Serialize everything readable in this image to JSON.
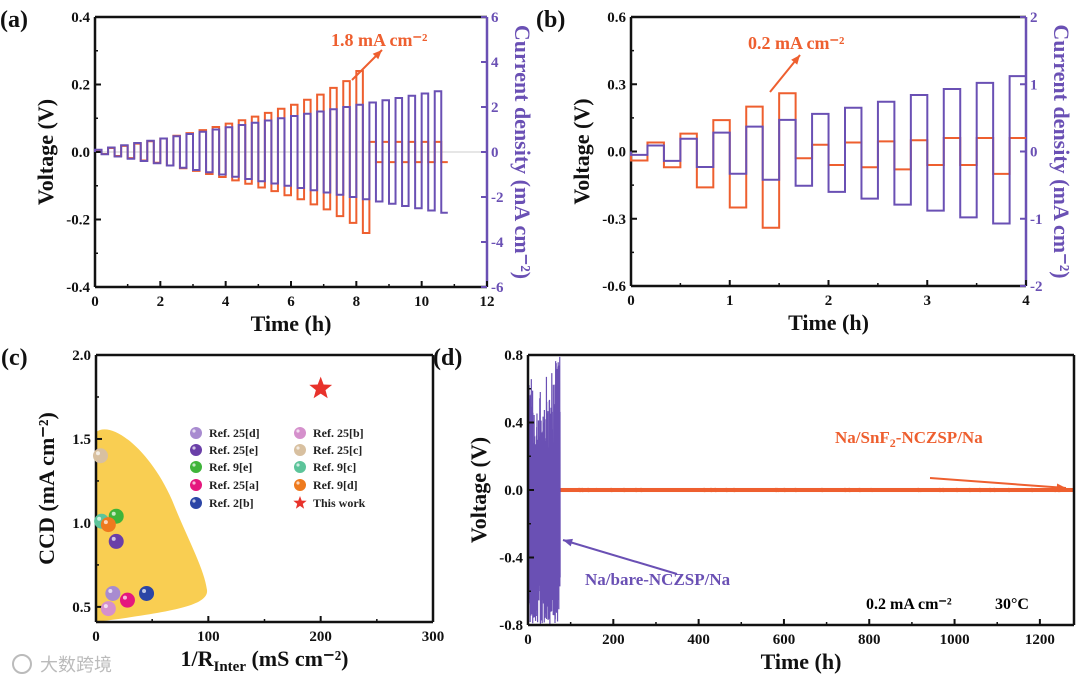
{
  "watermark": "大数跨境",
  "colors": {
    "orange": "#EE5F2F",
    "purple": "#6A50B4",
    "region": "#F9CE52",
    "star": "#E8322B"
  },
  "chart_data": [
    {
      "panel": "(a)",
      "type": "line",
      "xlabel": "Time (h)",
      "ylabel": "Voltage (V)",
      "ylabel_right": "Current density (mA cm⁻²)",
      "xlim": [
        0,
        12
      ],
      "ylim": [
        -0.4,
        0.4
      ],
      "ylim_right": [
        -6,
        6
      ],
      "xticks": [
        "0",
        "2",
        "4",
        "6",
        "8",
        "10",
        "12"
      ],
      "yticks": [
        "-0.4",
        "-0.2",
        "0.0",
        "0.2",
        "0.4"
      ],
      "yticks_right": [
        "-6",
        "-4",
        "-2",
        "0",
        "2",
        "4",
        "6"
      ],
      "annotation": "1.8 mA cm⁻²",
      "segment_duration_h": 0.2,
      "current_density_steps": [
        0.1,
        0.2,
        0.3,
        0.4,
        0.5,
        0.6,
        0.7,
        0.8,
        0.9,
        1.0,
        1.1,
        1.2,
        1.3,
        1.4,
        1.5,
        1.6,
        1.7,
        1.8,
        1.9,
        2.0,
        2.1,
        2.2,
        2.3,
        2.4,
        2.5,
        2.6,
        2.7
      ],
      "voltage_amplitudes": [
        0.006,
        0.012,
        0.018,
        0.025,
        0.032,
        0.04,
        0.048,
        0.056,
        0.065,
        0.074,
        0.084,
        0.094,
        0.105,
        0.116,
        0.128,
        0.14,
        0.155,
        0.17,
        0.19,
        0.21,
        0.24,
        0.03,
        0.03,
        0.03,
        0.03,
        0.03,
        0.03
      ]
    },
    {
      "panel": "(b)",
      "type": "line",
      "xlabel": "Time (h)",
      "ylabel": "Voltage (V)",
      "ylabel_right": "Current density (mA cm⁻²)",
      "xlim": [
        0,
        4
      ],
      "ylim": [
        -0.6,
        0.6
      ],
      "ylim_right": [
        -2,
        2
      ],
      "xticks": [
        "0",
        "1",
        "2",
        "3",
        "4"
      ],
      "yticks": [
        "-0.6",
        "-0.3",
        "0.0",
        "0.3",
        "0.6"
      ],
      "yticks_right": [
        "-2",
        "-1",
        "0",
        "1",
        "2"
      ],
      "annotation": "0.2 mA cm⁻²",
      "segment_duration_h": 0.1667,
      "current_density_segments": [
        -0.05,
        0.09,
        -0.14,
        0.19,
        -0.23,
        0.28,
        -0.33,
        0.37,
        -0.42,
        0.47,
        -0.51,
        0.56,
        -0.6,
        0.65,
        -0.7,
        0.74,
        -0.79,
        0.84,
        -0.88,
        0.93,
        -0.98,
        1.02,
        -1.07,
        1.12
      ],
      "voltage_segments": [
        -0.04,
        0.04,
        -0.07,
        0.08,
        -0.16,
        0.14,
        -0.25,
        0.2,
        -0.34,
        0.26,
        -0.03,
        0.03,
        -0.06,
        0.04,
        -0.07,
        0.045,
        -0.08,
        0.05,
        -0.06,
        0.06,
        -0.06,
        0.06,
        -0.1,
        0.06
      ]
    },
    {
      "panel": "(c)",
      "type": "scatter",
      "xlabel_main": "1/R",
      "xlabel_sub": "Inter",
      "xlabel_tail": " (mS cm⁻²)",
      "ylabel": "CCD (mA cm⁻²)",
      "xlim": [
        0,
        300
      ],
      "ylim": [
        0.41,
        2.0
      ],
      "xticks": [
        "0",
        "100",
        "200",
        "300"
      ],
      "yticks": [
        "0.5",
        "1.0",
        "1.5",
        "2.0"
      ],
      "points": [
        {
          "label": "Ref. 25[d]",
          "x": 15,
          "y": 0.58,
          "color": "#A88BD0",
          "marker": "sphere"
        },
        {
          "label": "Ref. 25[e]",
          "x": 18,
          "y": 0.89,
          "color": "#6A3FA8",
          "marker": "sphere"
        },
        {
          "label": "Ref. 9[e]",
          "x": 18,
          "y": 1.04,
          "color": "#3FB43A",
          "marker": "sphere"
        },
        {
          "label": "Ref. 25[a]",
          "x": 28,
          "y": 0.54,
          "color": "#E5177E",
          "marker": "sphere"
        },
        {
          "label": "Ref. 2[b]",
          "x": 45,
          "y": 0.58,
          "color": "#2B45A6",
          "marker": "sphere"
        },
        {
          "label": "Ref. 25[b]",
          "x": 11,
          "y": 0.49,
          "color": "#D590CC",
          "marker": "sphere"
        },
        {
          "label": "Ref. 25[c]",
          "x": 4,
          "y": 1.4,
          "color": "#D8C0A0",
          "marker": "sphere"
        },
        {
          "label": "Ref. 9[c]",
          "x": 5,
          "y": 1.01,
          "color": "#5CC49A",
          "marker": "sphere"
        },
        {
          "label": "Ref. 9[d]",
          "x": 11,
          "y": 0.99,
          "color": "#EE7A1E",
          "marker": "sphere"
        },
        {
          "label": "This work",
          "x": 200,
          "y": 1.8,
          "color": "#E8322B",
          "marker": "star"
        }
      ]
    },
    {
      "panel": "(d)",
      "type": "line",
      "xlabel": "Time (h)",
      "ylabel": "Voltage (V)",
      "xlim": [
        0,
        1280
      ],
      "ylim": [
        -0.8,
        0.8
      ],
      "xticks": [
        "0",
        "200",
        "400",
        "600",
        "800",
        "1000",
        "1200"
      ],
      "yticks": [
        "-0.8",
        "-0.4",
        "0.0",
        "0.4",
        "0.8"
      ],
      "series": [
        {
          "name_main": "Na/bare-NCZSP/Na",
          "t_range": [
            0,
            75
          ],
          "amplitude": 0.8
        },
        {
          "name_main": "Na/SnF",
          "name_sub": "2",
          "name_tail": "-NCZSP/Na",
          "t_range": [
            75,
            1280
          ],
          "amplitude": 0.012
        }
      ],
      "condition_current": "0.2 mA cm⁻²",
      "condition_temp": "30°C"
    }
  ]
}
